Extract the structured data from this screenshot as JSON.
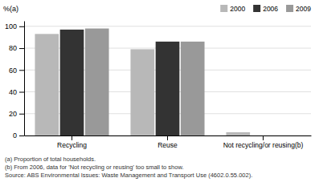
{
  "chart_data": {
    "type": "bar",
    "y_label": "%(a)",
    "categories": [
      "Recycling",
      "Reuse",
      "Not recycling/or reusing(b)"
    ],
    "series": [
      {
        "name": "2000",
        "color": "#b8b8b8",
        "values": [
          93,
          79,
          3
        ]
      },
      {
        "name": "2006",
        "color": "#333333",
        "values": [
          97,
          86,
          0
        ]
      },
      {
        "name": "2009",
        "color": "#999999",
        "values": [
          98,
          86,
          0
        ]
      }
    ],
    "ylim": [
      0,
      105
    ],
    "yticks": [
      0,
      20,
      40,
      60,
      80,
      100
    ],
    "grid": true,
    "legend": "upper right",
    "annotations": [
      "(a) Proportion of total households.",
      "(b) From 2006, data for 'Not recycling or reusing' too small to show.",
      "Source: ABS Environmental Issues: Waste Management and Transport Use (4602.0.55.002)."
    ]
  }
}
